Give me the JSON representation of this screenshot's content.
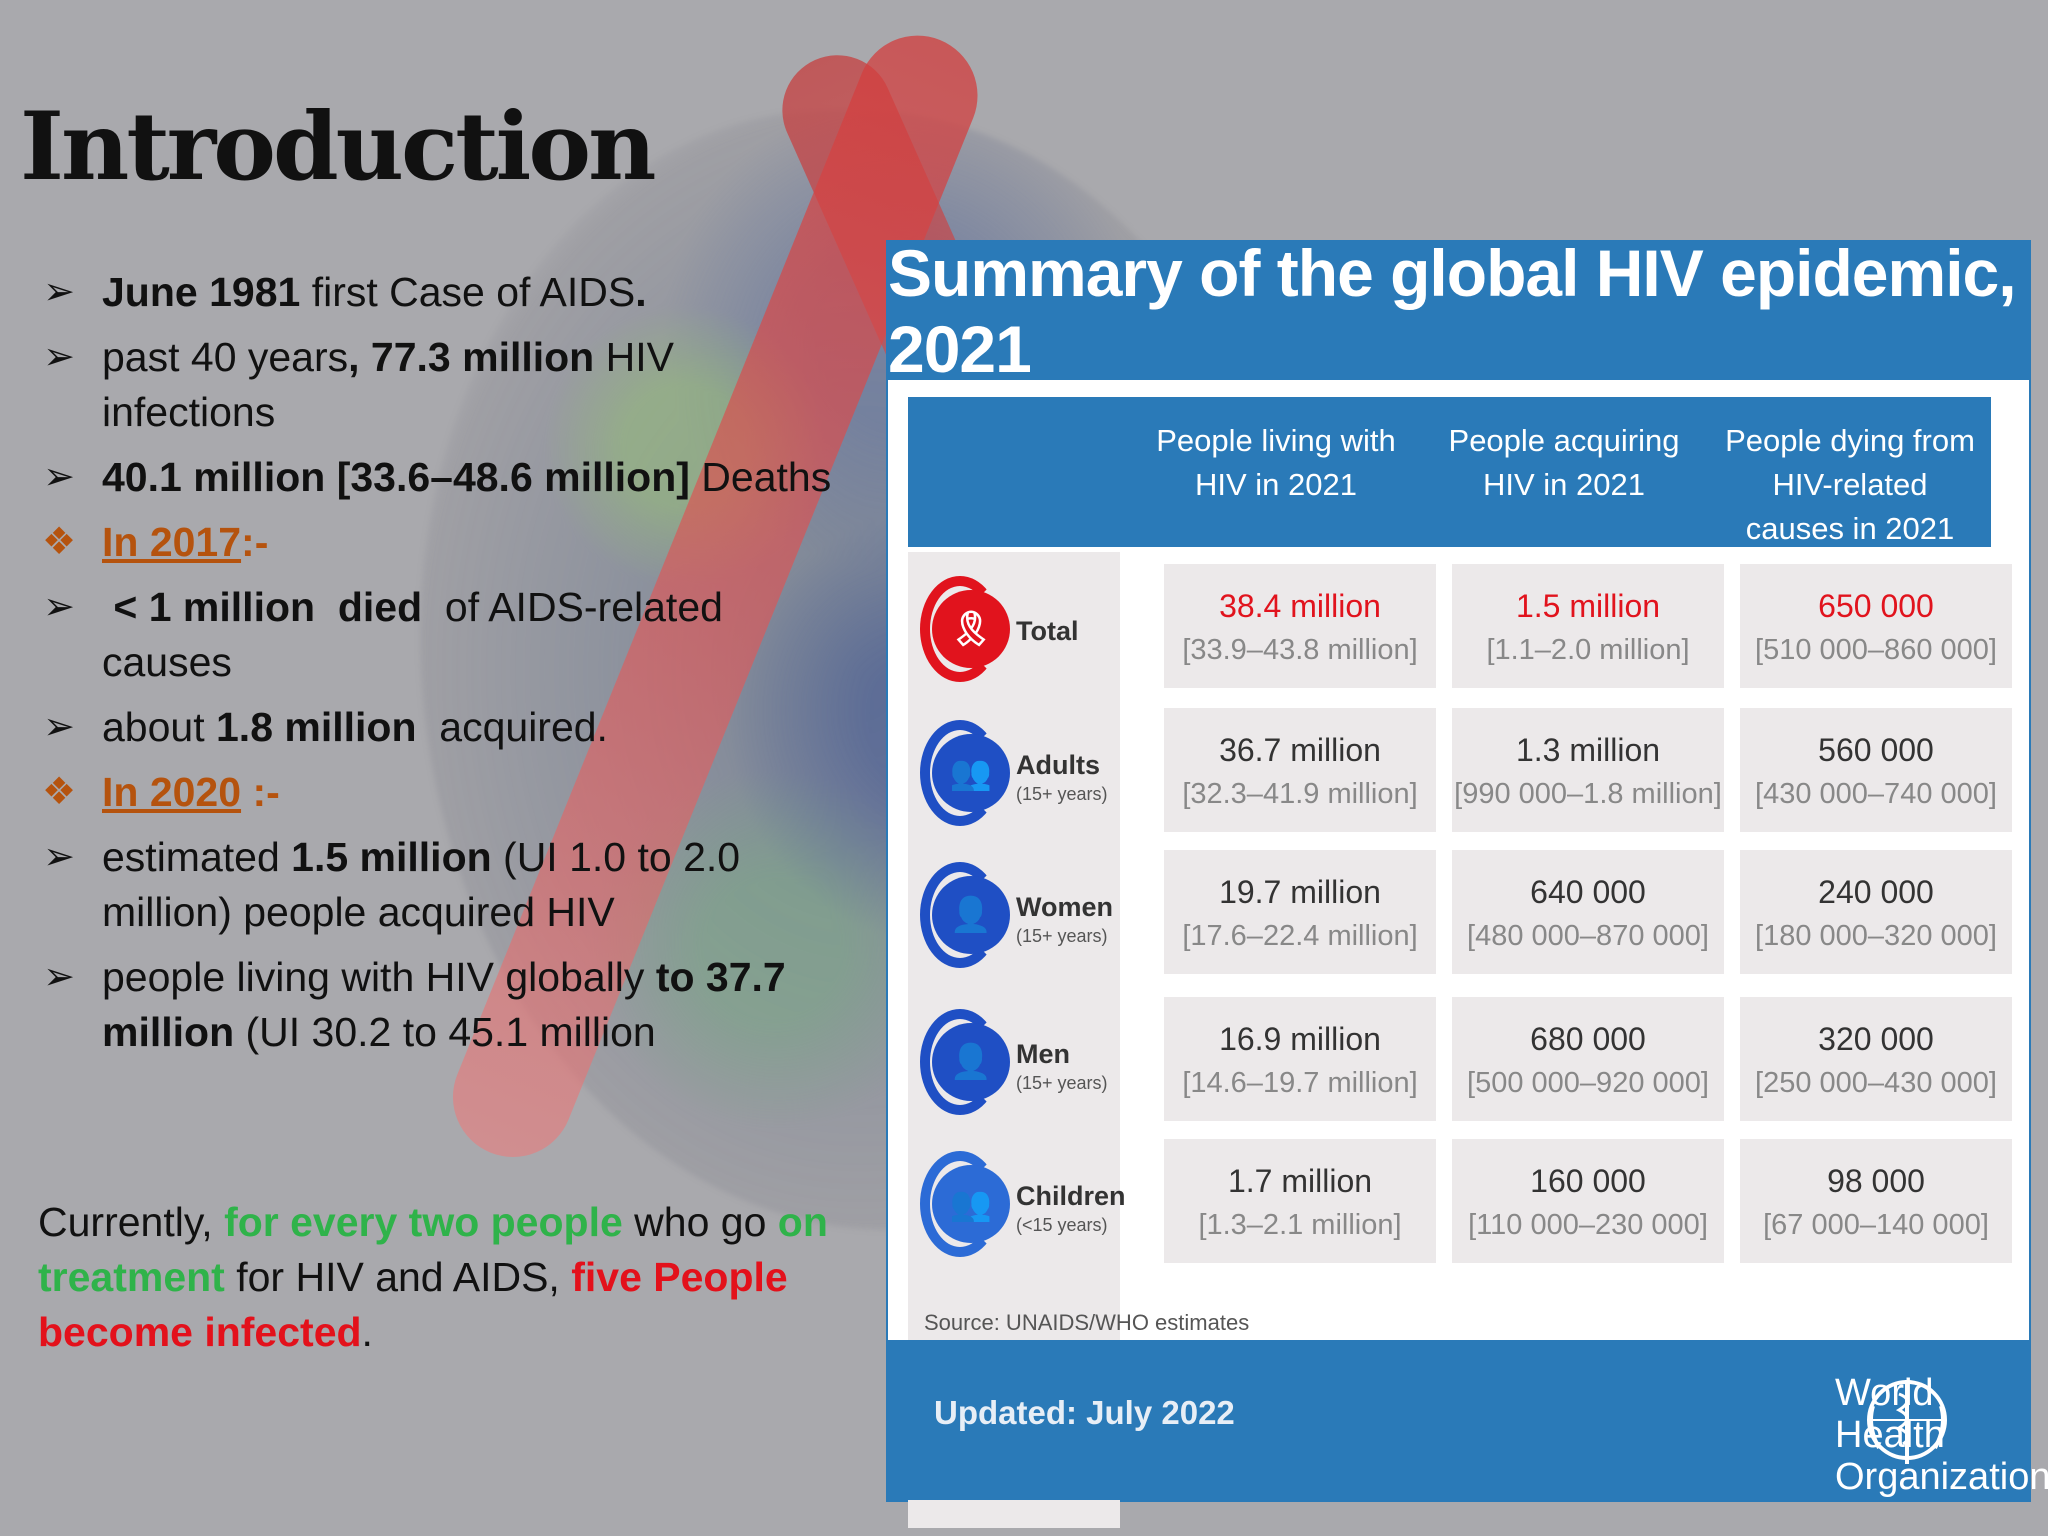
{
  "slide": {
    "title": "Introduction",
    "bullets": [
      {
        "marker": "arrow",
        "parts": [
          {
            "t": "June 1981",
            "b": true
          },
          {
            "t": " first Case of AIDS",
            "b": false
          },
          {
            "t": ".",
            "b": true
          }
        ]
      },
      {
        "marker": "arrow",
        "parts": [
          {
            "t": "past 40 years",
            "b": false
          },
          {
            "t": ", 77.3 million",
            "b": true
          },
          {
            "t": " HIV infections",
            "b": false
          }
        ]
      },
      {
        "marker": "arrow",
        "parts": [
          {
            "t": "40.1 million [33.6–48.6 million]",
            "b": true
          },
          {
            "t": " Deaths",
            "b": false
          }
        ]
      },
      {
        "marker": "diamond",
        "heading": "In 2017",
        "heading_suffix": ":-"
      },
      {
        "marker": "arrow",
        "parts": [
          {
            "t": " < 1 million  died ",
            "b": true
          },
          {
            "t": " of AIDS-related causes",
            "b": false
          }
        ]
      },
      {
        "marker": "arrow",
        "parts": [
          {
            "t": "about ",
            "b": false
          },
          {
            "t": "1.8 million",
            "b": true
          },
          {
            "t": "  acquired.",
            "b": false
          }
        ]
      },
      {
        "marker": "diamond",
        "heading": "In 2020",
        "heading_suffix": " :-"
      },
      {
        "marker": "arrow",
        "parts": [
          {
            "t": "estimated ",
            "b": false
          },
          {
            "t": "1.5 million",
            "b": true
          },
          {
            "t": " (UI 1.0 to 2.0 million) people acquired HIV",
            "b": false
          }
        ]
      },
      {
        "marker": "arrow",
        "parts": [
          {
            "t": "people living with HIV globally ",
            "b": false
          },
          {
            "t": "to 37.7 million",
            "b": true
          },
          {
            "t": " (UI 30.2 to 45.1 million",
            "b": false
          }
        ]
      }
    ],
    "note": {
      "p1": "Currently, ",
      "g1": "for every two people",
      "p2": " who go ",
      "g2": "on treatment",
      "p3": " for HIV and AIDS, ",
      "r1": "five People become infected",
      "p4": "."
    },
    "markers": {
      "arrow": "➢",
      "diamond": "❖"
    }
  },
  "infographic": {
    "title": "Summary of the global HIV epidemic, 2021",
    "columns": [
      "People living with HIV in 2021",
      "People acquiring HIV in 2021",
      "People dying from HIV-related causes in 2021"
    ],
    "rows": [
      {
        "label": "Total",
        "age": "",
        "icon": "red-ribbon-icon",
        "color": "#e1131d",
        "cells": [
          {
            "v": "38.4 million",
            "u": "[33.9–43.8 million]"
          },
          {
            "v": "1.5 million",
            "u": "[1.1–2.0 million]"
          },
          {
            "v": "650 000",
            "u": "[510 000–860 000]"
          }
        ]
      },
      {
        "label": "Adults",
        "age": "(15+ years)",
        "icon": "adults-icon",
        "color": "#1f4fc4",
        "cells": [
          {
            "v": "36.7 million",
            "u": "[32.3–41.9 million]"
          },
          {
            "v": "1.3 million",
            "u": "[990 000–1.8 million]"
          },
          {
            "v": "560 000",
            "u": "[430 000–740 000]"
          }
        ]
      },
      {
        "label": "Women",
        "age": "(15+ years)",
        "icon": "woman-icon",
        "color": "#1f4fc4",
        "cells": [
          {
            "v": "19.7 million",
            "u": "[17.6–22.4 million]"
          },
          {
            "v": "640 000",
            "u": "[480 000–870 000]"
          },
          {
            "v": "240 000",
            "u": "[180 000–320 000]"
          }
        ]
      },
      {
        "label": "Men",
        "age": "(15+ years)",
        "icon": "man-icon",
        "color": "#1f4fc4",
        "cells": [
          {
            "v": "16.9 million",
            "u": "[14.6–19.7 million]"
          },
          {
            "v": "680 000",
            "u": "[500 000–920 000]"
          },
          {
            "v": "320 000",
            "u": "[250 000–430 000]"
          }
        ]
      },
      {
        "label": "Children",
        "age": "(<15 years)",
        "icon": "children-icon",
        "color": "#2c6bd6",
        "cells": [
          {
            "v": "1.7 million",
            "u": "[1.3–2.1 million]"
          },
          {
            "v": "160 000",
            "u": "[110 000–230 000]"
          },
          {
            "v": "98 000",
            "u": "[67 000–140 000]"
          }
        ]
      }
    ],
    "source": "Source: UNAIDS/WHO estimates",
    "updated": "Updated: July 2022",
    "org": "World Health Organization",
    "org_line1": "World Health",
    "org_line2": "Organization",
    "colors": {
      "brand_blue": "#2a7ab8",
      "highlight_red": "#e1131d",
      "heading_orange": "#b5530e",
      "note_green": "#2fb34a",
      "note_red": "#e3111b"
    }
  }
}
